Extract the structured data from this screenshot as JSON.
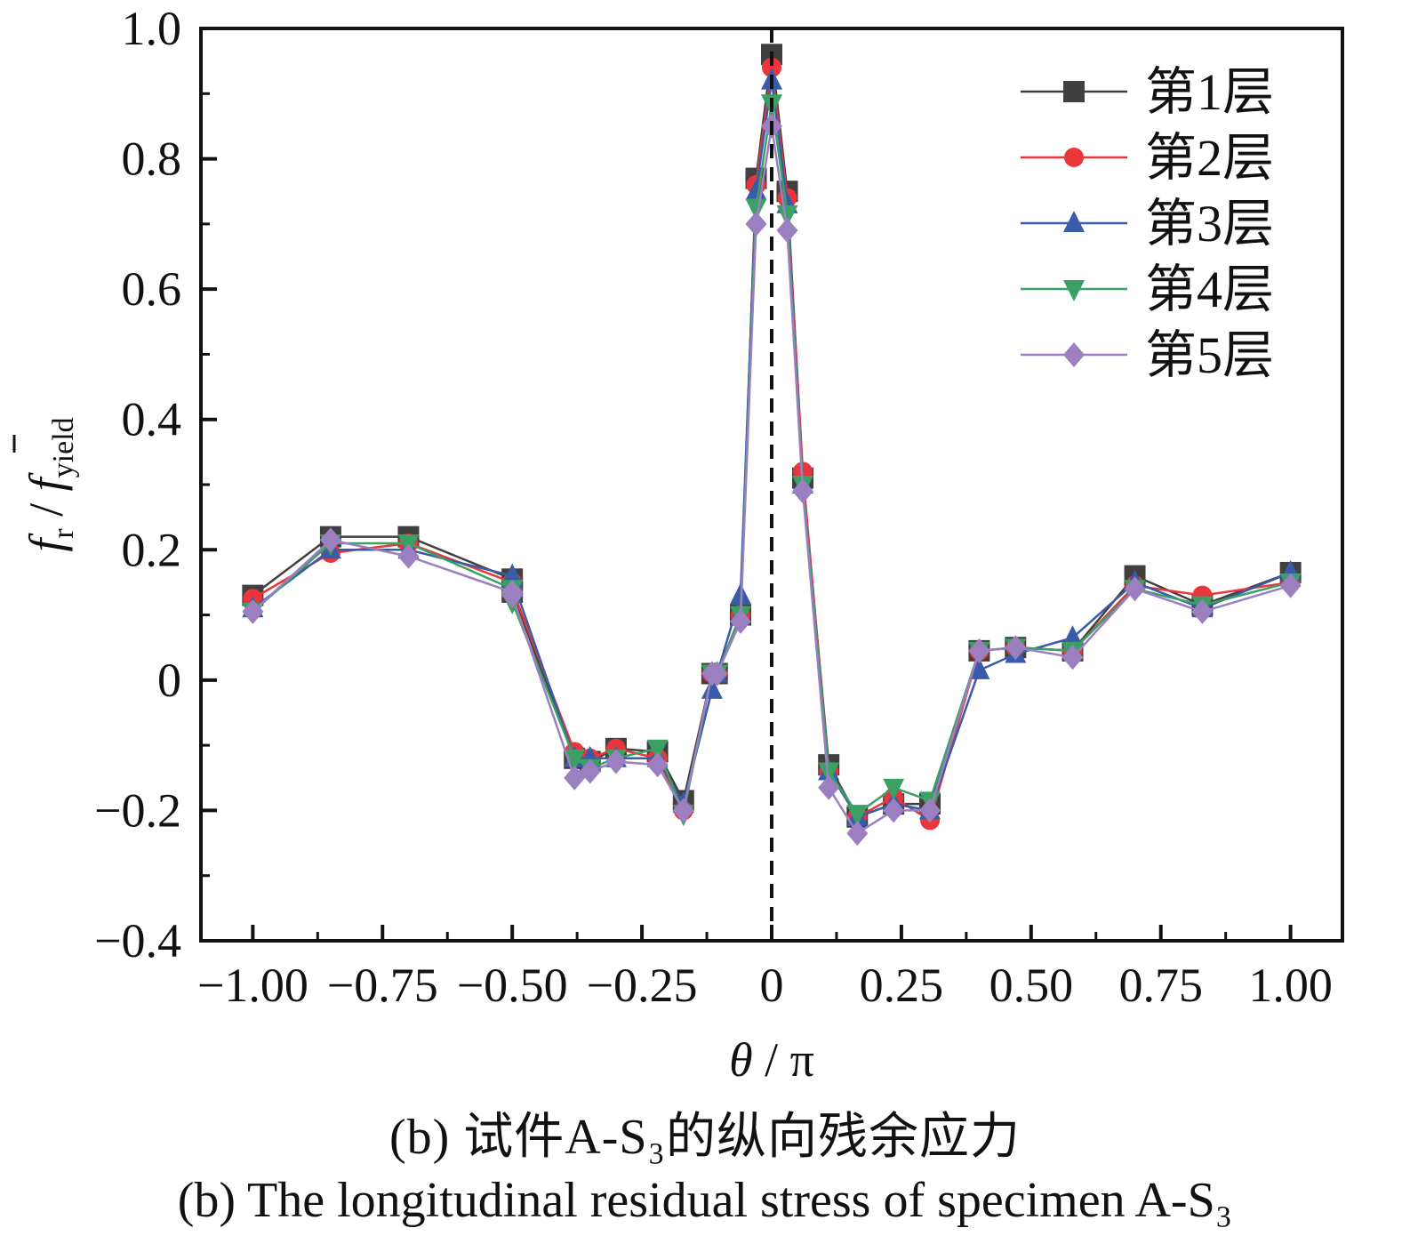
{
  "chart_data": {
    "type": "line",
    "ylabel": "f_r / f̄_yield",
    "xlabel": "θ / π",
    "xlim": [
      -1.1,
      1.1
    ],
    "ylim": [
      -0.4,
      1.0
    ],
    "x_ticks": [
      -1.0,
      -0.75,
      -0.5,
      -0.25,
      0,
      0.25,
      0.5,
      0.75,
      1.0
    ],
    "x_tick_labels": [
      "−1.00",
      "−0.75",
      "−0.50",
      "−0.25",
      "0",
      "0.25",
      "0.50",
      "0.75",
      "1.00"
    ],
    "y_ticks": [
      -0.4,
      -0.2,
      0,
      0.2,
      0.4,
      0.6,
      0.8,
      1.0
    ],
    "y_tick_labels": [
      "−0.4",
      "−0.2",
      "0",
      "0.2",
      "0.4",
      "0.6",
      "0.8",
      "1.0"
    ],
    "reference_line": {
      "x": 0,
      "style": "dashed"
    },
    "legend_position": "top-right",
    "x": [
      -1.0,
      -0.85,
      -0.7,
      -0.5,
      -0.5,
      -0.38,
      -0.35,
      -0.3,
      -0.22,
      -0.17,
      -0.115,
      -0.105,
      -0.06,
      -0.03,
      0,
      0.03,
      0.06,
      0.11,
      0.165,
      0.235,
      0.305,
      0.4,
      0.47,
      0.58,
      0.7,
      0.83,
      1.0
    ],
    "series": [
      {
        "name": "第1层",
        "color": "#404040",
        "marker": "square",
        "values": [
          0.13,
          0.22,
          0.22,
          0.155,
          0.135,
          -0.12,
          -0.125,
          -0.105,
          -0.11,
          -0.185,
          0.01,
          0.01,
          0.1,
          0.77,
          0.96,
          0.75,
          0.31,
          -0.13,
          -0.21,
          -0.19,
          -0.19,
          0.045,
          0.05,
          0.045,
          0.16,
          0.115,
          0.165
        ]
      },
      {
        "name": "第2层",
        "color": "#e8363b",
        "marker": "circle",
        "values": [
          0.125,
          0.195,
          0.21,
          0.15,
          0.14,
          -0.11,
          -0.12,
          -0.105,
          -0.12,
          -0.2,
          0.01,
          0.01,
          0.1,
          0.76,
          0.94,
          0.74,
          0.32,
          -0.14,
          -0.21,
          -0.18,
          -0.215,
          0.045,
          0.05,
          0.045,
          0.145,
          0.13,
          0.15
        ]
      },
      {
        "name": "第3层",
        "color": "#3a5ba8",
        "marker": "triangle-up",
        "values": [
          0.11,
          0.2,
          0.2,
          0.16,
          0.155,
          -0.12,
          -0.12,
          -0.12,
          -0.12,
          -0.19,
          -0.015,
          0.01,
          0.13,
          0.75,
          0.92,
          0.73,
          0.3,
          -0.14,
          -0.21,
          -0.19,
          -0.2,
          0.015,
          0.04,
          0.065,
          0.15,
          0.11,
          0.165
        ]
      },
      {
        "name": "第4层",
        "color": "#3aa063",
        "marker": "triangle-down",
        "values": [
          0.105,
          0.21,
          0.21,
          0.14,
          0.12,
          -0.12,
          -0.135,
          -0.12,
          -0.105,
          -0.205,
          0.01,
          0.01,
          0.1,
          0.725,
          0.885,
          0.715,
          0.3,
          -0.14,
          -0.205,
          -0.165,
          -0.185,
          0.045,
          0.05,
          0.045,
          0.14,
          0.115,
          0.15
        ]
      },
      {
        "name": "第5层",
        "color": "#9b7fc0",
        "marker": "diamond",
        "values": [
          0.105,
          0.215,
          0.19,
          0.135,
          0.13,
          -0.15,
          -0.14,
          -0.125,
          -0.13,
          -0.2,
          0.01,
          0.01,
          0.09,
          0.7,
          0.85,
          0.69,
          0.29,
          -0.165,
          -0.235,
          -0.2,
          -0.2,
          0.045,
          0.05,
          0.035,
          0.14,
          0.105,
          0.145
        ]
      }
    ]
  },
  "captions": {
    "cn": "(b)  试件A-S₃的纵向残余应力",
    "en": "(b)  The longitudinal residual stress of specimen A-S₃"
  }
}
